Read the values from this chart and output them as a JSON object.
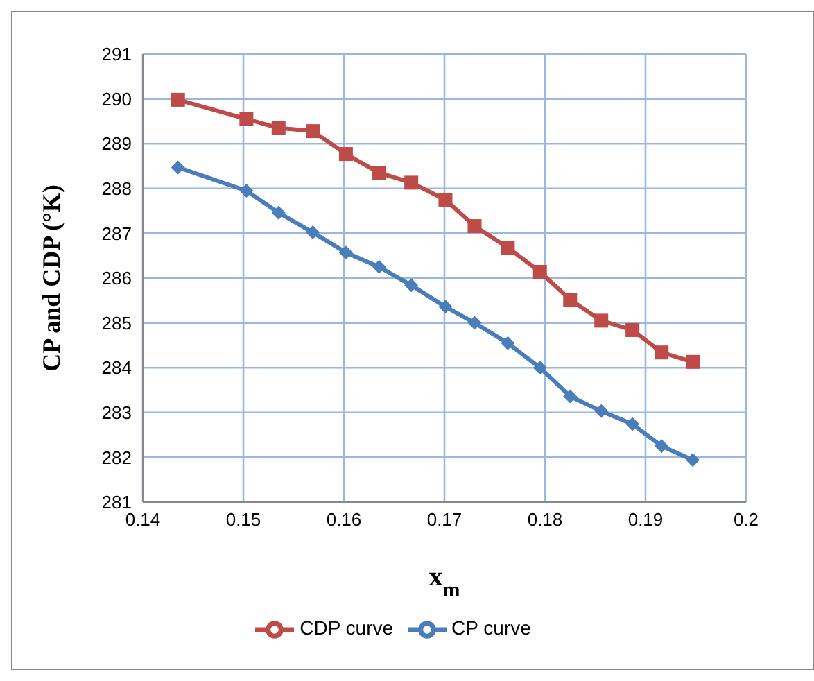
{
  "chart_data": {
    "type": "line",
    "xlabel": "x$_{m}$",
    "ylabel": "CP and CDP (°K)",
    "x": [
      0.1435,
      0.1503,
      0.1535,
      0.1569,
      0.1602,
      0.1635,
      0.1667,
      0.1701,
      0.173,
      0.1763,
      0.1795,
      0.1825,
      0.1856,
      0.1887,
      0.1916,
      0.1947
    ],
    "series": [
      {
        "name": "CP curve",
        "color": "#4a7ebb",
        "marker": "diamond",
        "values": [
          288.47,
          287.95,
          287.46,
          287.02,
          286.57,
          286.25,
          285.84,
          285.36,
          285.0,
          284.55,
          284.0,
          283.36,
          283.03,
          282.74,
          282.25,
          281.94
        ]
      },
      {
        "name": "CDP curve",
        "color": "#be4b48",
        "marker": "square",
        "values": [
          289.98,
          289.55,
          289.35,
          289.28,
          288.77,
          288.35,
          288.13,
          287.75,
          287.16,
          286.68,
          286.14,
          285.52,
          285.05,
          284.84,
          284.34,
          284.13
        ]
      }
    ],
    "xlim": [
      0.14,
      0.2
    ],
    "xticks": [
      0.14,
      0.15,
      0.16,
      0.17,
      0.18,
      0.19,
      {
        "value": 0.2,
        "label": "0.2"
      }
    ],
    "ylim": [
      281,
      291
    ],
    "yticks": [
      281,
      282,
      283,
      284,
      285,
      286,
      287,
      288,
      289,
      290,
      291
    ],
    "grid": true,
    "legend": "bottom",
    "line_style": "solid"
  }
}
